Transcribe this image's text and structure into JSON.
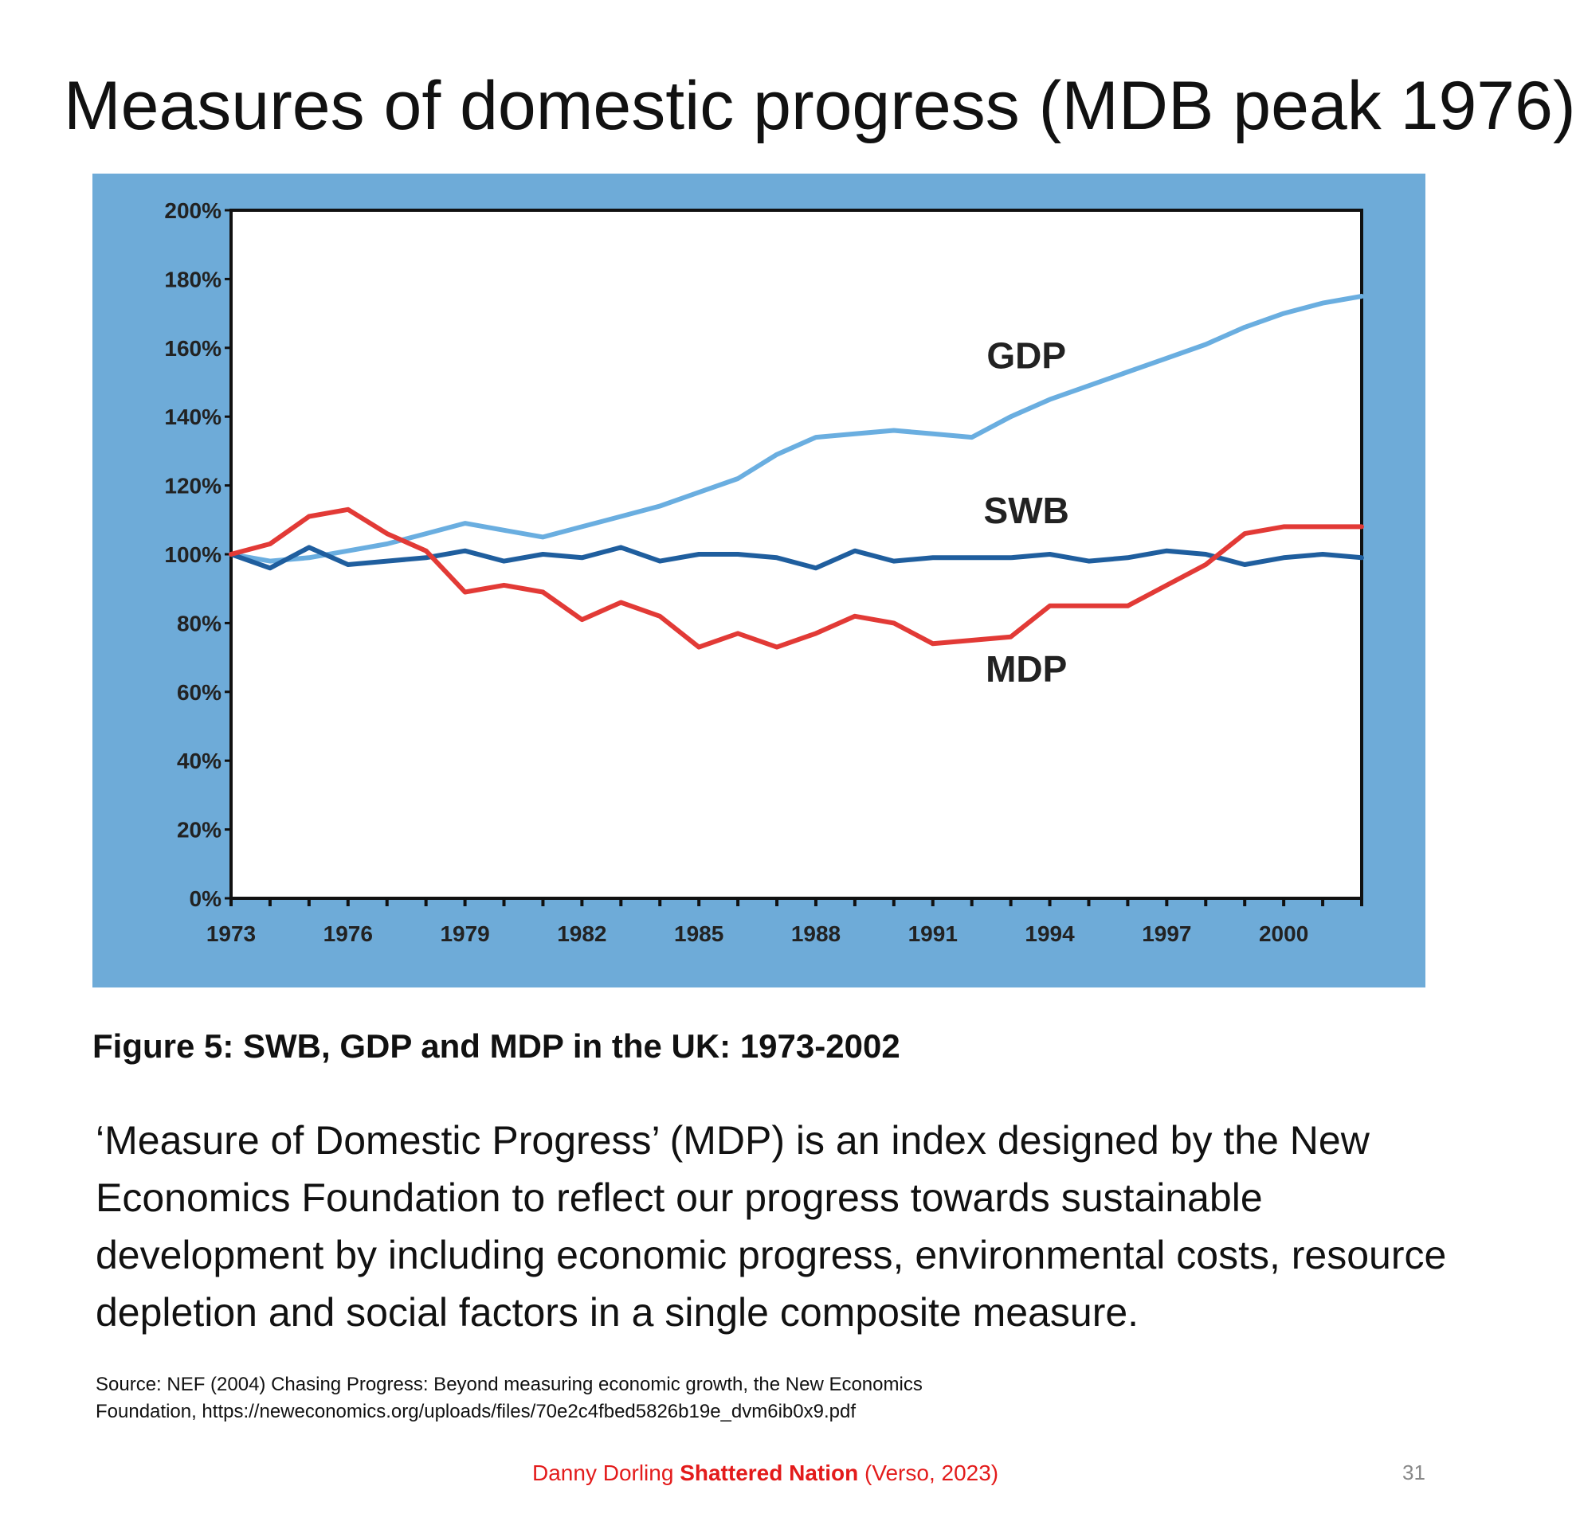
{
  "slide": {
    "title": "Measures of domestic progress (MDB peak 1976)",
    "caption": "Figure 5: SWB, GDP and MDP in the UK: 1973-2002",
    "body": "‘Measure of Domestic Progress’ (MDP) is an index designed by the New Economics Foundation to reflect our progress towards sustainable development by including economic progress, environmental costs, resource depletion and social factors in a single composite measure.",
    "source_line1": "Source: NEF (2004) Chasing Progress: Beyond measuring economic growth, the New Economics",
    "source_line2": "Foundation, https://neweconomics.org/uploads/files/70e2c4fbed5826b19e_dvm6ib0x9.pdf",
    "footer_author": "Danny Dorling",
    "footer_book": "Shattered Nation",
    "footer_publisher": "(Verso, 2023)",
    "page_number": "31"
  },
  "colors": {
    "panel_bg": "#6eabd8",
    "gdp": "#6aaee0",
    "swb": "#1f5e9e",
    "mdp": "#e23a36",
    "footer": "#e31b1b"
  },
  "chart_data": {
    "type": "line",
    "title": "Figure 5: SWB, GDP and MDP in the UK: 1973-2002",
    "xlabel": "",
    "ylabel": "",
    "x": [
      1973,
      1974,
      1975,
      1976,
      1977,
      1978,
      1979,
      1980,
      1981,
      1982,
      1983,
      1984,
      1985,
      1986,
      1987,
      1988,
      1989,
      1990,
      1991,
      1992,
      1993,
      1994,
      1995,
      1996,
      1997,
      1998,
      1999,
      2000,
      2001,
      2002
    ],
    "xlim": [
      1973,
      2002
    ],
    "ylim": [
      0,
      200
    ],
    "y_ticks": [
      0,
      20,
      40,
      60,
      80,
      100,
      120,
      140,
      160,
      180,
      200
    ],
    "y_tick_labels": [
      "0%",
      "20%",
      "40%",
      "60%",
      "80%",
      "100%",
      "120%",
      "140%",
      "160%",
      "180%",
      "200%"
    ],
    "x_ticks": [
      1973,
      1976,
      1979,
      1982,
      1985,
      1988,
      1991,
      1994,
      1997,
      2000
    ],
    "x_tick_labels": [
      "1973",
      "1976",
      "1979",
      "1982",
      "1985",
      "1988",
      "1991",
      "1994",
      "1997",
      "2000"
    ],
    "grid": false,
    "series": [
      {
        "name": "GDP",
        "color": "#6aaee0",
        "label_at": [
          1993.4,
          154
        ],
        "values": [
          100,
          98,
          99,
          101,
          103,
          106,
          109,
          107,
          105,
          108,
          111,
          114,
          118,
          122,
          129,
          134,
          135,
          136,
          135,
          134,
          140,
          145,
          149,
          153,
          157,
          161,
          166,
          170,
          173,
          175
        ]
      },
      {
        "name": "SWB",
        "color": "#1f5e9e",
        "label_at": [
          1993.4,
          109
        ],
        "values": [
          100,
          96,
          102,
          97,
          98,
          99,
          101,
          98,
          100,
          99,
          102,
          98,
          100,
          100,
          99,
          96,
          101,
          98,
          99,
          99,
          99,
          100,
          98,
          99,
          101,
          100,
          97,
          99,
          100,
          99
        ]
      },
      {
        "name": "MDP",
        "color": "#e23a36",
        "label_at": [
          1993.4,
          63
        ],
        "values": [
          100,
          103,
          111,
          113,
          106,
          101,
          89,
          91,
          89,
          81,
          86,
          82,
          73,
          77,
          73,
          77,
          82,
          80,
          74,
          75,
          76,
          85,
          85,
          85,
          91,
          97,
          106,
          108,
          108,
          108
        ]
      }
    ]
  }
}
